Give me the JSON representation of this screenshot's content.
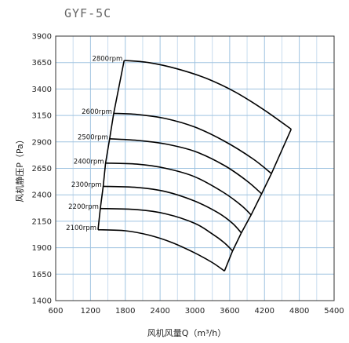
{
  "title": "GYF-5C",
  "chart_data": {
    "type": "line",
    "title": "GYF-5C",
    "xlabel": "风机风量Q（m³/h）",
    "ylabel": "风机静压P（Pa）",
    "xlim": [
      600,
      5400
    ],
    "ylim": [
      1400,
      3900
    ],
    "xticks": [
      600,
      1200,
      1800,
      2400,
      3000,
      3600,
      4200,
      4800,
      5400
    ],
    "yticks": [
      1400,
      1650,
      1900,
      2150,
      2400,
      2650,
      2900,
      3150,
      3400,
      3650,
      3900
    ],
    "grid": true,
    "series": [
      {
        "name": "2800rpm",
        "x": [
          1780,
          2200,
          2700,
          3200,
          3700,
          4200,
          4660
        ],
        "y": [
          3670,
          3650,
          3590,
          3500,
          3370,
          3200,
          3020
        ]
      },
      {
        "name": "2600rpm",
        "x": [
          1600,
          2000,
          2500,
          3000,
          3500,
          4000,
          4320
        ],
        "y": [
          3170,
          3160,
          3120,
          3040,
          2910,
          2740,
          2600
        ]
      },
      {
        "name": "2500rpm",
        "x": [
          1530,
          2000,
          2500,
          3000,
          3500,
          3900,
          4150
        ],
        "y": [
          2930,
          2915,
          2880,
          2810,
          2680,
          2530,
          2410
        ]
      },
      {
        "name": "2400rpm",
        "x": [
          1460,
          2000,
          2500,
          3000,
          3500,
          3800,
          3970
        ],
        "y": [
          2700,
          2690,
          2650,
          2570,
          2420,
          2300,
          2210
        ]
      },
      {
        "name": "2300rpm",
        "x": [
          1420,
          2000,
          2500,
          3000,
          3400,
          3650,
          3800
        ],
        "y": [
          2480,
          2470,
          2430,
          2340,
          2230,
          2130,
          2040
        ]
      },
      {
        "name": "2200rpm",
        "x": [
          1370,
          2000,
          2500,
          3000,
          3300,
          3500,
          3650
        ],
        "y": [
          2270,
          2260,
          2220,
          2130,
          2030,
          1950,
          1870
        ]
      },
      {
        "name": "2100rpm",
        "x": [
          1330,
          1800,
          2200,
          2600,
          3000,
          3300,
          3510
        ],
        "y": [
          2070,
          2060,
          2020,
          1950,
          1850,
          1760,
          1680
        ]
      }
    ],
    "envelope_left": {
      "x": [
        1780,
        1600,
        1530,
        1460,
        1420,
        1370,
        1330
      ],
      "y": [
        3670,
        3170,
        2930,
        2700,
        2480,
        2270,
        2070
      ]
    },
    "envelope_right": {
      "x": [
        4660,
        4320,
        4150,
        3970,
        3800,
        3650,
        3510
      ],
      "y": [
        3020,
        2600,
        2410,
        2210,
        2040,
        1870,
        1680
      ]
    }
  }
}
